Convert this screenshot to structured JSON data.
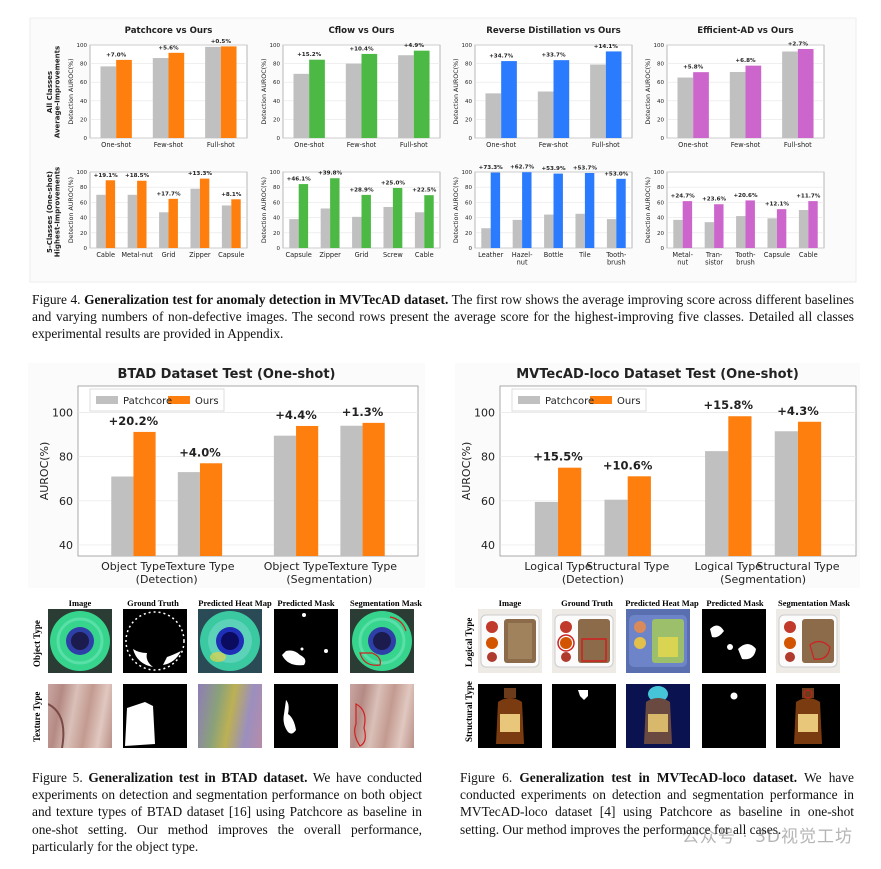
{
  "fig4": {
    "row_labels": [
      "All Classes\nAverage-Improvements",
      "5-Classes (One-shot)\nHighest-Improvements"
    ],
    "y_axis_label": "Detection AUROC(%)",
    "yticks": [
      0,
      20,
      40,
      60,
      80,
      100
    ],
    "caption_prefix": "Figure 4. ",
    "caption_bold": "Generalization test for anomaly detection in MVTecAD dataset.",
    "caption_rest": " The first row shows the average improving score across different baselines and varying numbers of non-defective images. The second rows present the average score for the highest-improving five classes. Detailed all classes experimental results are provided in Appendix."
  },
  "chart_data": [
    {
      "type": "bar",
      "title": "Patchcore vs Ours",
      "ylabel": "Detection AUROC(%)",
      "ylim": [
        0,
        100
      ],
      "categories": [
        "One-shot",
        "Few-shot",
        "Full-shot"
      ],
      "series": [
        {
          "values": [
            77,
            86,
            98
          ]
        },
        {
          "values": [
            84,
            91.6,
            98.5
          ]
        }
      ],
      "annotations": [
        "+7.0%",
        "+5.6%",
        "+0.5%"
      ],
      "colors": [
        "#c0c0c0",
        "#ff7f0e"
      ]
    },
    {
      "type": "bar",
      "title": "Cflow vs Ours",
      "ylabel": "Detection AUROC(%)",
      "ylim": [
        0,
        100
      ],
      "categories": [
        "One-shot",
        "Few-shot",
        "Full-shot"
      ],
      "series": [
        {
          "values": [
            69,
            80,
            89
          ]
        },
        {
          "values": [
            84.2,
            90.4,
            93.9
          ]
        }
      ],
      "annotations": [
        "+15.2%",
        "+10.4%",
        "+4.9%"
      ],
      "colors": [
        "#c0c0c0",
        "#4cb944"
      ]
    },
    {
      "type": "bar",
      "title": "Reverse Distillation vs Ours",
      "ylabel": "Detection AUROC(%)",
      "ylim": [
        0,
        100
      ],
      "categories": [
        "One-shot",
        "Few-shot",
        "Full-shot"
      ],
      "series": [
        {
          "values": [
            48,
            50,
            79
          ]
        },
        {
          "values": [
            82.7,
            83.7,
            93.1
          ]
        }
      ],
      "annotations": [
        "+34.7%",
        "+33.7%",
        "+14.1%"
      ],
      "colors": [
        "#c0c0c0",
        "#2b7bff"
      ]
    },
    {
      "type": "bar",
      "title": "Efficient-AD vs Ours",
      "ylabel": "Detection AUROC(%)",
      "ylim": [
        0,
        100
      ],
      "categories": [
        "One-shot",
        "Few-shot",
        "Full-shot"
      ],
      "series": [
        {
          "values": [
            65,
            71,
            93
          ]
        },
        {
          "values": [
            70.8,
            77.8,
            95.7
          ]
        }
      ],
      "annotations": [
        "+5.8%",
        "+6.8%",
        "+2.7%"
      ],
      "colors": [
        "#c0c0c0",
        "#cc66cc"
      ]
    },
    {
      "type": "bar",
      "ylabel": "Detection AUROC(%)",
      "ylim": [
        0,
        100
      ],
      "categories": [
        "Cable",
        "Metal-nut",
        "Grid",
        "Zipper",
        "Capsule"
      ],
      "series": [
        {
          "values": [
            70,
            70,
            47,
            78,
            56
          ]
        },
        {
          "values": [
            89.1,
            88.5,
            64.7,
            91.3,
            64.1
          ]
        }
      ],
      "annotations": [
        "+19.1%",
        "+18.5%",
        "+17.7%",
        "+13.3%",
        "+8.1%"
      ],
      "colors": [
        "#c0c0c0",
        "#ff7f0e"
      ]
    },
    {
      "type": "bar",
      "ylabel": "Detection AUROC(%)",
      "ylim": [
        0,
        100
      ],
      "categories": [
        "Capsule",
        "Zipper",
        "Grid",
        "Screw",
        "Cable"
      ],
      "series": [
        {
          "values": [
            38,
            52,
            41,
            54,
            47
          ]
        },
        {
          "values": [
            84.1,
            91.8,
            69.9,
            79,
            69.5
          ]
        }
      ],
      "annotations": [
        "+46.1%",
        "+39.8%",
        "+28.9%",
        "+25.0%",
        "+22.5%"
      ],
      "colors": [
        "#c0c0c0",
        "#4cb944"
      ]
    },
    {
      "type": "bar",
      "ylabel": "Detection AUROC(%)",
      "ylim": [
        0,
        100
      ],
      "categories": [
        "Leather",
        "Hazel-\nnut",
        "Bottle",
        "Tile",
        "Tooth-\nbrush"
      ],
      "series": [
        {
          "values": [
            26,
            37,
            44,
            45,
            38
          ]
        },
        {
          "values": [
            99.3,
            99.7,
            97.9,
            98.7,
            91
          ]
        }
      ],
      "annotations": [
        "+73.3%",
        "+62.7%",
        "+53.9%",
        "+53.7%",
        "+53.0%"
      ],
      "colors": [
        "#c0c0c0",
        "#2b7bff"
      ]
    },
    {
      "type": "bar",
      "ylabel": "Detection AUROC(%)",
      "ylim": [
        0,
        100
      ],
      "categories": [
        "Metal-\nnut",
        "Tran-\nsistor",
        "Tooth-\nbrush",
        "Capsule",
        "Cable"
      ],
      "series": [
        {
          "values": [
            37,
            34,
            42,
            39,
            50
          ]
        },
        {
          "values": [
            61.7,
            57.6,
            62.6,
            51.1,
            61.7
          ]
        }
      ],
      "annotations": [
        "+24.7%",
        "+23.6%",
        "+20.6%",
        "+12.1%",
        "+11.7%"
      ],
      "colors": [
        "#c0c0c0",
        "#cc66cc"
      ]
    },
    {
      "type": "bar",
      "title": "BTAD Dataset Test (One-shot)",
      "ylabel": "AUROC(%)",
      "ylim": [
        35,
        112
      ],
      "yticks": [
        40,
        60,
        80,
        100
      ],
      "categories": [
        "Object Type",
        "Texture Type",
        "Object Type",
        "Texture Type"
      ],
      "group_labels": [
        "(Detection)",
        "(Segmentation)"
      ],
      "series": [
        {
          "name": "Patchcore",
          "values": [
            71,
            73,
            89.5,
            94
          ]
        },
        {
          "name": "Ours",
          "values": [
            91.2,
            77,
            93.9,
            95.3
          ]
        }
      ],
      "annotations": [
        "+20.2%",
        "+4.0%",
        "+4.4%",
        "+1.3%"
      ],
      "legend": "top-left",
      "colors": [
        "#c0c0c0",
        "#ff7f0e"
      ]
    },
    {
      "type": "bar",
      "title": "MVTecAD-loco Dataset Test (One-shot)",
      "ylabel": "AUROC(%)",
      "ylim": [
        35,
        112
      ],
      "yticks": [
        40,
        60,
        80,
        100
      ],
      "categories": [
        "Logical Type",
        "Structural Type",
        "Logical Type",
        "Structural Type"
      ],
      "group_labels": [
        "(Detection)",
        "(Segmentation)"
      ],
      "series": [
        {
          "name": "Patchcore",
          "values": [
            59.5,
            60.5,
            82.5,
            91.5
          ]
        },
        {
          "name": "Ours",
          "values": [
            75,
            71.1,
            98.3,
            95.8
          ]
        }
      ],
      "annotations": [
        "+15.5%",
        "+10.6%",
        "+15.8%",
        "+4.3%"
      ],
      "legend": "top-left",
      "colors": [
        "#c0c0c0",
        "#ff7f0e"
      ]
    }
  ],
  "fig5": {
    "col_headers": [
      "Image",
      "Ground Truth",
      "Predicted Heat Map",
      "Predicted Mask",
      "Segmentation Mask"
    ],
    "row_labels": [
      "Object Type",
      "Texture Type"
    ],
    "caption_prefix": "Figure 5. ",
    "caption_bold": "Generalization test in BTAD dataset.",
    "caption_rest": " We have conducted experiments on detection and segmentation performance on both object and texture types of BTAD dataset [16] using Patchcore as baseline in one-shot setting. Our method improves the overall performance, particularly for the object type."
  },
  "fig6": {
    "col_headers": [
      "Image",
      "Ground Truth",
      "Predicted Heat Map",
      "Predicted Mask",
      "Segmentation Mask"
    ],
    "row_labels": [
      "Logical Type",
      "Structural Type"
    ],
    "caption_prefix": "Figure 6. ",
    "caption_bold": "Generalization test in MVTecAD-loco dataset.",
    "caption_rest": " We have conducted experiments on detection and segmentation performance in MVTecAD-loco dataset [4] using Patchcore as baseline in one-shot setting. Our method improves the performance for all cases."
  },
  "watermark": "公众号 · 3D视觉工坊"
}
